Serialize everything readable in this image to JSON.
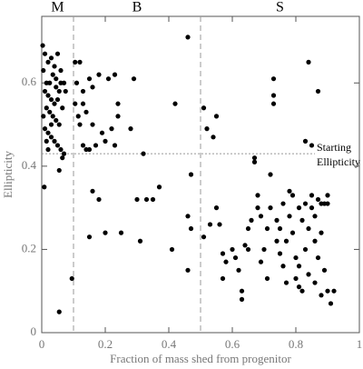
{
  "chart_data": {
    "type": "scatter",
    "xlabel": "Fraction of mass shed from progenitor",
    "ylabel": "Ellipticity",
    "xlim": [
      0,
      1
    ],
    "ylim": [
      0,
      0.76
    ],
    "xticks": [
      0,
      0.2,
      0.4,
      0.6,
      0.8,
      1
    ],
    "yticks": [
      0,
      0.2,
      0.4,
      0.6
    ],
    "color": "#000000",
    "regions": [
      "M",
      "B",
      "S"
    ],
    "vlines": [
      0.1,
      0.5
    ],
    "hline": 0.43,
    "annotation_lines": [
      "Starting",
      "Ellipticity"
    ],
    "x": [
      0.003,
      0.01,
      0.02,
      0.005,
      0.015,
      0.03,
      0.04,
      0.05,
      0.035,
      0.025,
      0.045,
      0.06,
      0.055,
      0.01,
      0.02,
      0.03,
      0.04,
      0.05,
      0.065,
      0.015,
      0.025,
      0.035,
      0.045,
      0.055,
      0.005,
      0.01,
      0.02,
      0.03,
      0.04,
      0.05,
      0.06,
      0.07,
      0.02,
      0.065,
      0.008,
      0.055,
      0.055,
      0.095,
      0.07,
      0.075,
      0.06,
      0.015,
      0.03,
      0.045,
      0.105,
      0.12,
      0.11,
      0.13,
      0.15,
      0.16,
      0.18,
      0.21,
      0.23,
      0.105,
      0.115,
      0.13,
      0.14,
      0.16,
      0.12,
      0.13,
      0.14,
      0.15,
      0.17,
      0.19,
      0.2,
      0.22,
      0.24,
      0.24,
      0.23,
      0.28,
      0.29,
      0.32,
      0.3,
      0.33,
      0.37,
      0.35,
      0.18,
      0.16,
      0.2,
      0.25,
      0.15,
      0.31,
      0.42,
      0.41,
      0.46,
      0.46,
      0.47,
      0.47,
      0.46,
      0.51,
      0.52,
      0.54,
      0.55,
      0.51,
      0.53,
      0.55,
      0.56,
      0.57,
      0.57,
      0.58,
      0.6,
      0.61,
      0.62,
      0.63,
      0.63,
      0.64,
      0.65,
      0.65,
      0.66,
      0.67,
      0.67,
      0.68,
      0.68,
      0.69,
      0.69,
      0.7,
      0.71,
      0.71,
      0.72,
      0.72,
      0.73,
      0.73,
      0.73,
      0.74,
      0.74,
      0.75,
      0.75,
      0.76,
      0.77,
      0.77,
      0.78,
      0.78,
      0.79,
      0.79,
      0.8,
      0.8,
      0.81,
      0.81,
      0.81,
      0.82,
      0.82,
      0.83,
      0.83,
      0.84,
      0.84,
      0.85,
      0.85,
      0.85,
      0.86,
      0.86,
      0.86,
      0.87,
      0.87,
      0.87,
      0.88,
      0.88,
      0.89,
      0.89,
      0.9,
      0.9,
      0.9,
      0.91,
      0.92,
      0.83,
      0.84,
      0.88,
      0.76
    ],
    "values": [
      0.69,
      0.67,
      0.65,
      0.63,
      0.6,
      0.66,
      0.64,
      0.67,
      0.62,
      0.6,
      0.59,
      0.6,
      0.58,
      0.58,
      0.57,
      0.56,
      0.55,
      0.56,
      0.54,
      0.54,
      0.53,
      0.52,
      0.51,
      0.5,
      0.52,
      0.49,
      0.48,
      0.47,
      0.46,
      0.45,
      0.44,
      0.43,
      0.44,
      0.42,
      0.35,
      0.39,
      0.05,
      0.13,
      0.6,
      0.58,
      0.63,
      0.46,
      0.5,
      0.61,
      0.65,
      0.65,
      0.6,
      0.58,
      0.61,
      0.59,
      0.62,
      0.61,
      0.62,
      0.55,
      0.52,
      0.55,
      0.53,
      0.5,
      0.5,
      0.45,
      0.44,
      0.44,
      0.45,
      0.48,
      0.46,
      0.49,
      0.55,
      0.52,
      0.45,
      0.49,
      0.61,
      0.43,
      0.32,
      0.32,
      0.35,
      0.32,
      0.32,
      0.34,
      0.24,
      0.24,
      0.23,
      0.22,
      0.55,
      0.2,
      0.71,
      0.28,
      0.38,
      0.25,
      0.15,
      0.54,
      0.49,
      0.47,
      0.52,
      0.23,
      0.26,
      0.3,
      0.26,
      0.19,
      0.13,
      0.17,
      0.2,
      0.18,
      0.15,
      0.08,
      0.1,
      0.21,
      0.25,
      0.2,
      0.27,
      0.41,
      0.42,
      0.3,
      0.33,
      0.28,
      0.17,
      0.2,
      0.25,
      0.13,
      0.38,
      0.3,
      0.61,
      0.57,
      0.55,
      0.22,
      0.27,
      0.25,
      0.19,
      0.16,
      0.12,
      0.22,
      0.34,
      0.28,
      0.33,
      0.24,
      0.18,
      0.13,
      0.11,
      0.16,
      0.3,
      0.27,
      0.1,
      0.46,
      0.2,
      0.65,
      0.25,
      0.3,
      0.33,
      0.45,
      0.28,
      0.22,
      0.12,
      0.58,
      0.32,
      0.18,
      0.31,
      0.24,
      0.31,
      0.15,
      0.33,
      0.31,
      0.1,
      0.07,
      0.1,
      0.31,
      0.14,
      0.09,
      0.31
    ]
  }
}
